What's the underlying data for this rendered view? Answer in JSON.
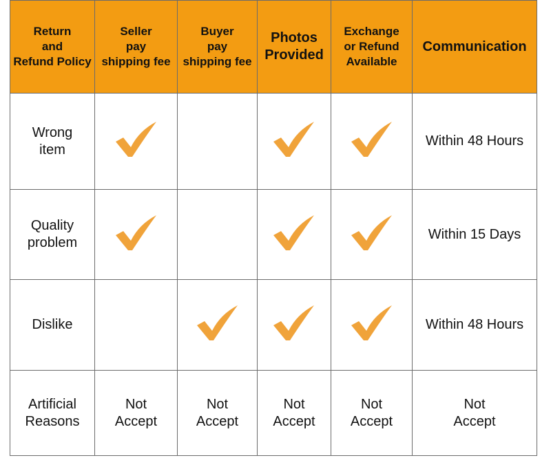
{
  "colors": {
    "header_bg": "#f39c12",
    "check": "#f0a33a",
    "border": "#6b6b6b"
  },
  "headers": [
    "Return\nand\nRefund Policy",
    "Seller\npay\nshipping fee",
    "Buyer\npay\nshipping fee",
    "Photos\nProvided",
    "Exchange\nor Refund\nAvailable",
    "Communication"
  ],
  "rows": [
    {
      "label": "Wrong\nitem",
      "seller": true,
      "buyer": false,
      "photos": true,
      "exchange": true,
      "communication": "Within 48 Hours"
    },
    {
      "label": "Quality\nproblem",
      "seller": true,
      "buyer": false,
      "photos": true,
      "exchange": true,
      "communication": "Within 15 Days"
    },
    {
      "label": "Dislike",
      "seller": false,
      "buyer": true,
      "photos": true,
      "exchange": true,
      "communication": "Within 48 Hours"
    }
  ],
  "artificial": {
    "label": "Artificial\nReasons",
    "values": [
      "Not\nAccept",
      "Not\nAccept",
      "Not\nAccept",
      "Not\nAccept",
      "Not\nAccept"
    ]
  },
  "icons": {
    "checkmark": "checkmark-icon"
  }
}
